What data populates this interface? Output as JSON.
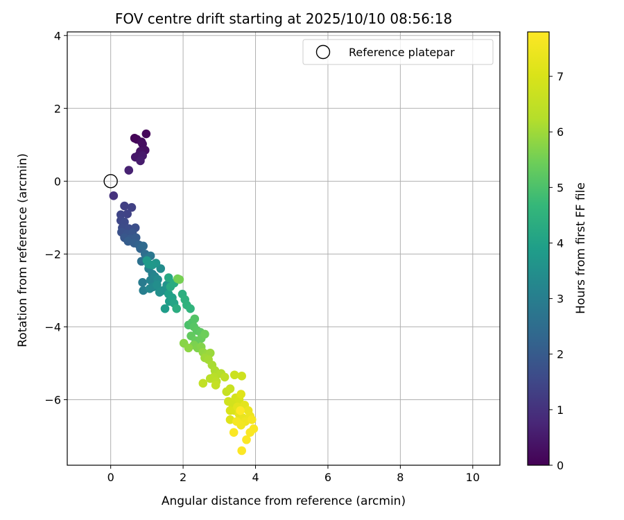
{
  "chart_data": {
    "type": "scatter",
    "title": "FOV centre drift starting at 2025/10/10 08:56:18",
    "xlabel": "Angular distance from reference (arcmin)",
    "ylabel": "Rotation from reference (arcmin)",
    "xlim": [
      -1.2,
      10.75
    ],
    "ylim": [
      -7.8,
      4.1
    ],
    "xticks": [
      0,
      2,
      4,
      6,
      8,
      10
    ],
    "yticks": [
      -6,
      -4,
      -2,
      0,
      2,
      4
    ],
    "grid": true,
    "legend": {
      "position": "top-right",
      "entries": [
        "Reference platepar"
      ]
    },
    "colorbar": {
      "label": "Hours from first FF file",
      "range": [
        0,
        7.8
      ],
      "ticks": [
        0,
        1,
        2,
        3,
        4,
        5,
        6,
        7
      ],
      "colormap": "viridis"
    },
    "reference": {
      "x": 0,
      "y": 0,
      "label": "Reference platepar"
    },
    "points": [
      {
        "x": 0.66,
        "y": 1.18,
        "t": 0.05
      },
      {
        "x": 0.72,
        "y": 1.15,
        "t": 0.1
      },
      {
        "x": 0.98,
        "y": 1.3,
        "t": 0.12
      },
      {
        "x": 0.85,
        "y": 1.08,
        "t": 0.2
      },
      {
        "x": 0.88,
        "y": 1.02,
        "t": 0.25
      },
      {
        "x": 0.95,
        "y": 0.85,
        "t": 0.3
      },
      {
        "x": 0.82,
        "y": 0.82,
        "t": 0.35
      },
      {
        "x": 0.78,
        "y": 0.72,
        "t": 0.4
      },
      {
        "x": 0.68,
        "y": 0.66,
        "t": 0.45
      },
      {
        "x": 0.88,
        "y": 0.7,
        "t": 0.5
      },
      {
        "x": 0.82,
        "y": 0.56,
        "t": 0.55
      },
      {
        "x": 0.5,
        "y": 0.3,
        "t": 0.65
      },
      {
        "x": 0.08,
        "y": -0.4,
        "t": 1.0
      },
      {
        "x": 0.38,
        "y": -0.68,
        "t": 1.3
      },
      {
        "x": 0.58,
        "y": -0.72,
        "t": 1.35
      },
      {
        "x": 0.46,
        "y": -0.9,
        "t": 1.4
      },
      {
        "x": 0.28,
        "y": -0.92,
        "t": 1.45
      },
      {
        "x": 0.28,
        "y": -1.08,
        "t": 1.5
      },
      {
        "x": 0.38,
        "y": -1.12,
        "t": 1.55
      },
      {
        "x": 0.32,
        "y": -1.28,
        "t": 1.6
      },
      {
        "x": 0.5,
        "y": -1.3,
        "t": 1.65
      },
      {
        "x": 0.68,
        "y": -1.28,
        "t": 1.7
      },
      {
        "x": 0.3,
        "y": -1.4,
        "t": 1.75
      },
      {
        "x": 0.45,
        "y": -1.45,
        "t": 1.8
      },
      {
        "x": 0.6,
        "y": -1.42,
        "t": 1.85
      },
      {
        "x": 0.38,
        "y": -1.55,
        "t": 1.9
      },
      {
        "x": 0.55,
        "y": -1.58,
        "t": 1.95
      },
      {
        "x": 0.7,
        "y": -1.55,
        "t": 2.0
      },
      {
        "x": 0.48,
        "y": -1.65,
        "t": 2.05
      },
      {
        "x": 0.65,
        "y": -1.7,
        "t": 2.1
      },
      {
        "x": 0.78,
        "y": -1.75,
        "t": 2.2
      },
      {
        "x": 0.82,
        "y": -1.85,
        "t": 2.3
      },
      {
        "x": 0.9,
        "y": -1.78,
        "t": 2.4
      },
      {
        "x": 0.95,
        "y": -2.0,
        "t": 2.5
      },
      {
        "x": 0.85,
        "y": -2.2,
        "t": 2.6
      },
      {
        "x": 0.98,
        "y": -2.12,
        "t": 2.7
      },
      {
        "x": 1.1,
        "y": -2.05,
        "t": 2.8
      },
      {
        "x": 0.88,
        "y": -2.78,
        "t": 2.9
      },
      {
        "x": 0.9,
        "y": -3.0,
        "t": 3.0
      },
      {
        "x": 1.05,
        "y": -2.4,
        "t": 3.05
      },
      {
        "x": 1.15,
        "y": -2.55,
        "t": 3.1
      },
      {
        "x": 1.1,
        "y": -2.72,
        "t": 3.15
      },
      {
        "x": 1.22,
        "y": -2.62,
        "t": 3.2
      },
      {
        "x": 1.08,
        "y": -2.95,
        "t": 3.25
      },
      {
        "x": 1.18,
        "y": -2.9,
        "t": 3.3
      },
      {
        "x": 1.3,
        "y": -2.7,
        "t": 3.35
      },
      {
        "x": 1.38,
        "y": -2.4,
        "t": 3.4
      },
      {
        "x": 1.28,
        "y": -2.85,
        "t": 3.45
      },
      {
        "x": 1.35,
        "y": -3.05,
        "t": 3.5
      },
      {
        "x": 1.45,
        "y": -3.0,
        "t": 3.55
      },
      {
        "x": 1.55,
        "y": -2.85,
        "t": 3.6
      },
      {
        "x": 1.25,
        "y": -2.25,
        "t": 3.65
      },
      {
        "x": 1.15,
        "y": -2.3,
        "t": 3.7
      },
      {
        "x": 1.05,
        "y": -2.28,
        "t": 3.75
      },
      {
        "x": 1.0,
        "y": -2.18,
        "t": 3.8
      },
      {
        "x": 1.5,
        "y": -3.5,
        "t": 3.85
      },
      {
        "x": 1.62,
        "y": -3.3,
        "t": 3.9
      },
      {
        "x": 1.6,
        "y": -3.1,
        "t": 3.95
      },
      {
        "x": 1.7,
        "y": -3.2,
        "t": 4.0
      },
      {
        "x": 1.75,
        "y": -3.35,
        "t": 4.1
      },
      {
        "x": 1.6,
        "y": -2.65,
        "t": 4.2
      },
      {
        "x": 1.65,
        "y": -2.9,
        "t": 4.25
      },
      {
        "x": 1.75,
        "y": -2.8,
        "t": 4.3
      },
      {
        "x": 1.82,
        "y": -3.5,
        "t": 4.35
      },
      {
        "x": 1.85,
        "y": -2.68,
        "t": 5.5
      },
      {
        "x": 1.9,
        "y": -2.7,
        "t": 5.55
      },
      {
        "x": 1.98,
        "y": -3.1,
        "t": 4.4
      },
      {
        "x": 2.05,
        "y": -3.25,
        "t": 4.45
      },
      {
        "x": 2.1,
        "y": -3.4,
        "t": 4.5
      },
      {
        "x": 2.2,
        "y": -3.5,
        "t": 4.55
      },
      {
        "x": 2.15,
        "y": -3.95,
        "t": 5.0
      },
      {
        "x": 2.25,
        "y": -3.88,
        "t": 5.05
      },
      {
        "x": 2.32,
        "y": -3.78,
        "t": 5.1
      },
      {
        "x": 2.3,
        "y": -4.0,
        "t": 5.15
      },
      {
        "x": 2.38,
        "y": -4.1,
        "t": 5.2
      },
      {
        "x": 2.48,
        "y": -4.15,
        "t": 5.25
      },
      {
        "x": 2.22,
        "y": -4.25,
        "t": 5.3
      },
      {
        "x": 2.35,
        "y": -4.38,
        "t": 5.35
      },
      {
        "x": 2.5,
        "y": -4.32,
        "t": 5.4
      },
      {
        "x": 2.6,
        "y": -4.2,
        "t": 5.45
      },
      {
        "x": 2.3,
        "y": -4.5,
        "t": 5.6
      },
      {
        "x": 2.4,
        "y": -4.58,
        "t": 5.65
      },
      {
        "x": 2.5,
        "y": -4.55,
        "t": 5.7
      },
      {
        "x": 2.02,
        "y": -4.45,
        "t": 5.75
      },
      {
        "x": 2.15,
        "y": -4.58,
        "t": 5.8
      },
      {
        "x": 2.55,
        "y": -4.7,
        "t": 5.85
      },
      {
        "x": 2.65,
        "y": -4.75,
        "t": 5.9
      },
      {
        "x": 2.75,
        "y": -4.72,
        "t": 5.95
      },
      {
        "x": 2.6,
        "y": -4.85,
        "t": 6.0
      },
      {
        "x": 2.7,
        "y": -4.9,
        "t": 6.05
      },
      {
        "x": 2.8,
        "y": -5.05,
        "t": 6.1
      },
      {
        "x": 2.88,
        "y": -5.2,
        "t": 6.15
      },
      {
        "x": 2.95,
        "y": -5.3,
        "t": 6.2
      },
      {
        "x": 3.05,
        "y": -5.28,
        "t": 6.25
      },
      {
        "x": 2.85,
        "y": -5.38,
        "t": 6.3
      },
      {
        "x": 2.75,
        "y": -5.42,
        "t": 6.35
      },
      {
        "x": 2.92,
        "y": -5.5,
        "t": 6.4
      },
      {
        "x": 3.15,
        "y": -5.38,
        "t": 6.45
      },
      {
        "x": 2.55,
        "y": -5.55,
        "t": 6.5
      },
      {
        "x": 2.9,
        "y": -5.6,
        "t": 6.55
      },
      {
        "x": 3.2,
        "y": -5.78,
        "t": 6.6
      },
      {
        "x": 3.3,
        "y": -5.7,
        "t": 6.65
      },
      {
        "x": 3.42,
        "y": -5.32,
        "t": 6.7
      },
      {
        "x": 3.62,
        "y": -5.35,
        "t": 6.75
      },
      {
        "x": 3.25,
        "y": -6.05,
        "t": 6.8
      },
      {
        "x": 3.35,
        "y": -6.1,
        "t": 6.85
      },
      {
        "x": 3.45,
        "y": -5.95,
        "t": 6.9
      },
      {
        "x": 3.55,
        "y": -6.0,
        "t": 6.95
      },
      {
        "x": 3.3,
        "y": -6.3,
        "t": 7.0
      },
      {
        "x": 3.42,
        "y": -6.3,
        "t": 7.05
      },
      {
        "x": 3.3,
        "y": -6.55,
        "t": 7.1
      },
      {
        "x": 3.6,
        "y": -5.85,
        "t": 7.15
      },
      {
        "x": 3.5,
        "y": -6.2,
        "t": 7.2
      },
      {
        "x": 3.7,
        "y": -6.15,
        "t": 7.25
      },
      {
        "x": 3.55,
        "y": -6.4,
        "t": 7.3
      },
      {
        "x": 3.65,
        "y": -6.5,
        "t": 7.35
      },
      {
        "x": 3.8,
        "y": -6.3,
        "t": 7.4
      },
      {
        "x": 3.85,
        "y": -6.45,
        "t": 7.45
      },
      {
        "x": 3.72,
        "y": -6.6,
        "t": 7.5
      },
      {
        "x": 3.6,
        "y": -6.7,
        "t": 7.55
      },
      {
        "x": 3.48,
        "y": -6.6,
        "t": 7.6
      },
      {
        "x": 3.9,
        "y": -6.55,
        "t": 7.65
      },
      {
        "x": 3.95,
        "y": -6.8,
        "t": 7.7
      },
      {
        "x": 3.85,
        "y": -6.9,
        "t": 7.72
      },
      {
        "x": 3.4,
        "y": -6.9,
        "t": 7.74
      },
      {
        "x": 3.75,
        "y": -7.1,
        "t": 7.76
      },
      {
        "x": 3.62,
        "y": -7.4,
        "t": 7.78
      },
      {
        "x": 3.58,
        "y": -6.3,
        "t": 7.8
      }
    ]
  }
}
